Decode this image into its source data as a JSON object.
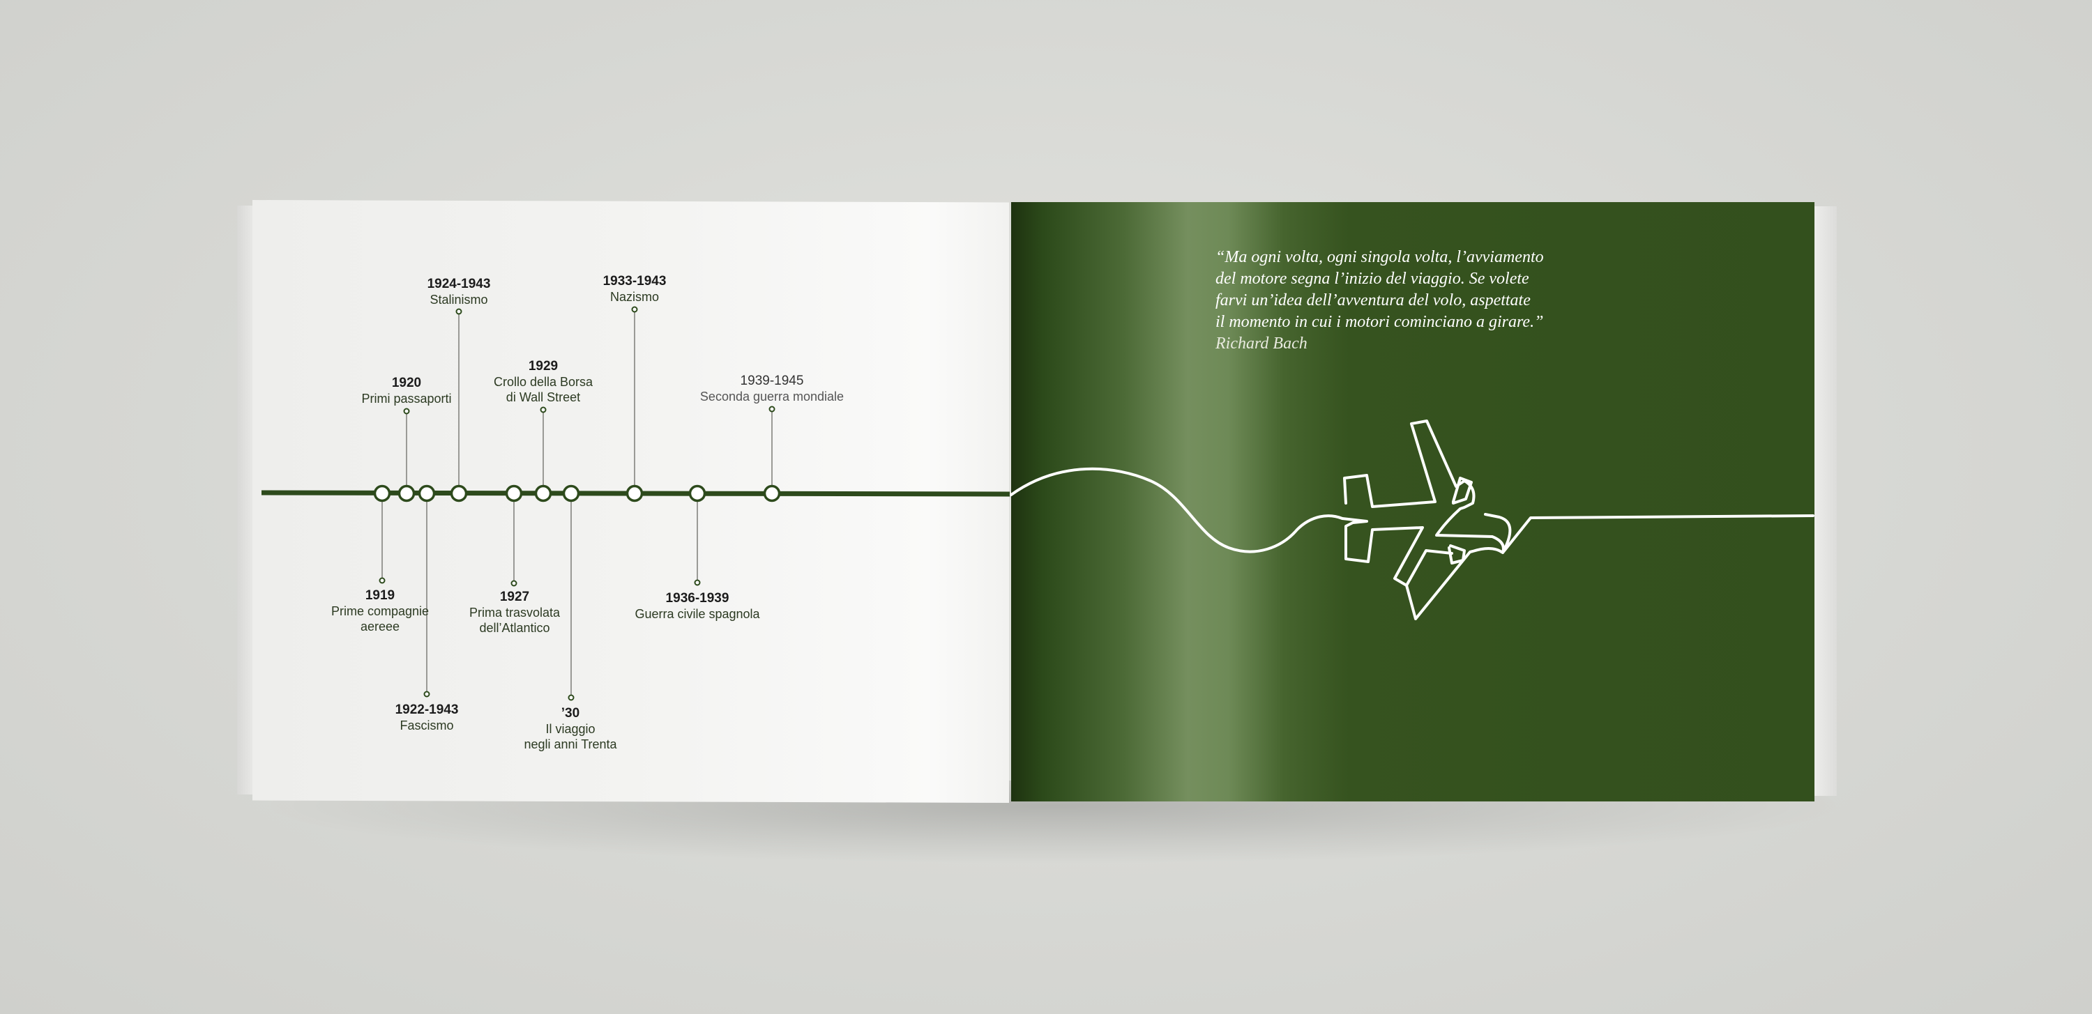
{
  "timeline": {
    "events_above": [
      {
        "year": "1924-1943",
        "desc": "Stalinismo"
      },
      {
        "year": "1920",
        "desc": "Primi passaporti"
      },
      {
        "year": "1929",
        "desc": "Crollo della Borsa",
        "desc2": "di Wall Street"
      },
      {
        "year": "1933-1943",
        "desc": "Nazismo"
      },
      {
        "year": "1939-1945",
        "desc": "Seconda guerra mondiale"
      }
    ],
    "events_below": [
      {
        "year": "1919",
        "desc": "Prime compagnie",
        "desc2": "aereee"
      },
      {
        "year": "1922-1943",
        "desc": "Fascismo"
      },
      {
        "year": "1927",
        "desc": "Prima trasvolata",
        "desc2": "dell’Atlantico"
      },
      {
        "year": "’30",
        "desc": "Il viaggio",
        "desc2": "negli anni Trenta"
      },
      {
        "year": "1936-1939",
        "desc": "Guerra civile spagnola"
      }
    ]
  },
  "quote": {
    "lines": [
      "“Ma ogni volta, ogni singola volta, l’avviamento",
      "del motore segna l’inizio del viaggio. Se volete",
      "farvi un’idea dell’avventura del volo, aspettate",
      "il momento in cui i motori cominciano a girare.”"
    ],
    "author": "Richard Bach"
  },
  "colors": {
    "timeline_line": "#2d4a1c",
    "right_page": "#33501d",
    "drawing_line": "#ffffff"
  },
  "icons": {
    "airplane": "airplane-line-drawing-icon"
  }
}
